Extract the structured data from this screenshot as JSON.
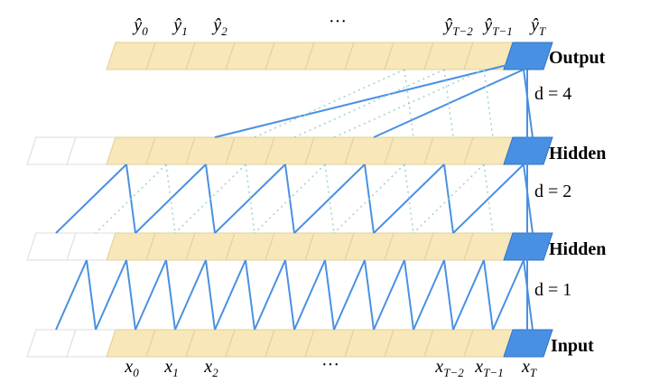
{
  "output_labels": [
    {
      "base": "ŷ",
      "sub": "0"
    },
    {
      "base": "ŷ",
      "sub": "1"
    },
    {
      "base": "ŷ",
      "sub": "2"
    },
    {
      "base": "ŷ",
      "sub": "T−2"
    },
    {
      "base": "ŷ",
      "sub": "T−1"
    },
    {
      "base": "ŷ",
      "sub": "T"
    }
  ],
  "output_ellipsis": "···",
  "input_labels": [
    {
      "base": "x",
      "sub": "0"
    },
    {
      "base": "x",
      "sub": "1"
    },
    {
      "base": "x",
      "sub": "2"
    },
    {
      "base": "x",
      "sub": "T−2"
    },
    {
      "base": "x",
      "sub": "T−1"
    },
    {
      "base": "x",
      "sub": "T"
    }
  ],
  "input_ellipsis": "···",
  "layers": [
    "Output",
    "Hidden",
    "Hidden",
    "Input"
  ],
  "dilations": [
    "d = 4",
    "d = 2",
    "d = 1"
  ]
}
